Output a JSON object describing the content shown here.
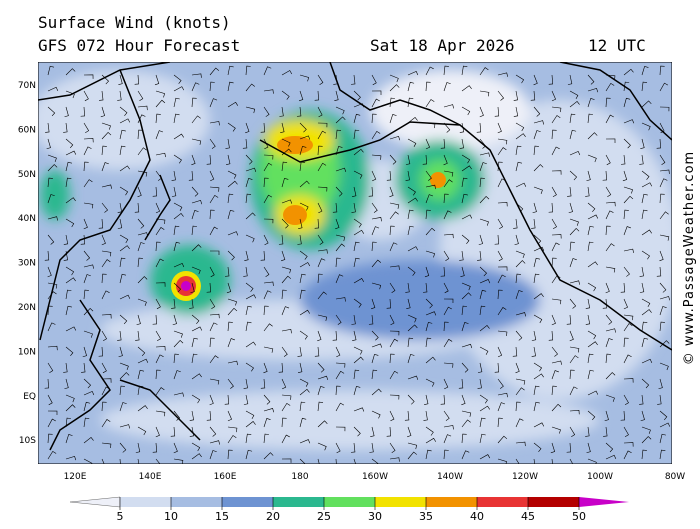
{
  "header": {
    "title": "Surface Wind (knots)",
    "subtitle": "GFS 072 Hour Forecast",
    "date": "Sat 18 Apr 2026",
    "time": "12 UTC"
  },
  "map": {
    "lat_labels": [
      "70N",
      "60N",
      "50N",
      "40N",
      "30N",
      "20N",
      "10N",
      "EQ",
      "10S"
    ],
    "lon_labels": [
      "120E",
      "140E",
      "160E",
      "180",
      "160W",
      "140W",
      "120W",
      "100W",
      "80W"
    ]
  },
  "colorbar": {
    "ticks": [
      5,
      10,
      15,
      20,
      25,
      30,
      35,
      40,
      45,
      50
    ],
    "colors": [
      "#eef0f8",
      "#d2ddf0",
      "#a6bde2",
      "#6e93d2",
      "#2bb88f",
      "#62e05e",
      "#f2e200",
      "#f29200",
      "#e83434",
      "#b40000",
      "#c800c8"
    ]
  },
  "watermark": "© www.PassageWeather.com"
}
